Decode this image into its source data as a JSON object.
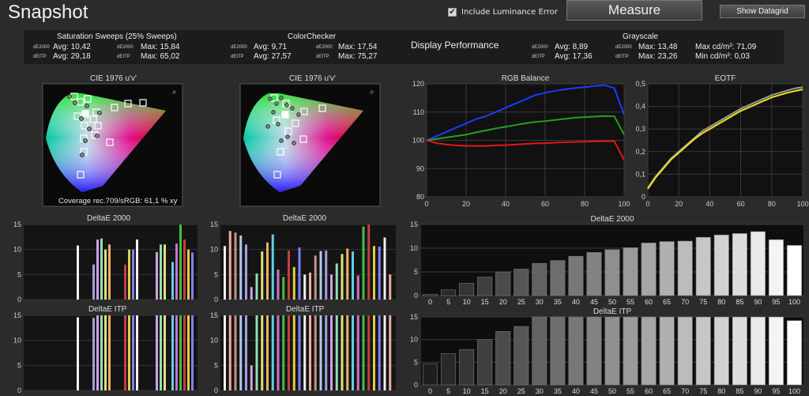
{
  "header": {
    "title": "Snapshot",
    "luminance_checkbox_label": "Include Luminance Error",
    "luminance_checked": true,
    "measure_label": "Measure",
    "datagrid_label": "Show Datagrid"
  },
  "stats": {
    "display_performance": "Display Performance",
    "saturation": {
      "title": "Saturation Sweeps (25% Sweeps)",
      "de_label": "dE2000",
      "itp_label": "dEITP",
      "de_avg": "Avg: 10,42",
      "itp_avg": "Avg: 29,18",
      "de_max": "Max: 15,84",
      "itp_max": "Max: 65,02"
    },
    "colorchecker": {
      "title": "ColorChecker",
      "de_label": "dE2000",
      "itp_label": "dEITP",
      "de_avg": "Avg: 9,71",
      "itp_avg": "Avg: 27,57",
      "de_max": "Max: 17,54",
      "itp_max": "Max: 75,27"
    },
    "grayscale": {
      "title": "Grayscale",
      "de_label": "dE2000",
      "itp_label": "dEITP",
      "de_avg": "Avg: 8,89",
      "itp_avg": "Avg: 17,36",
      "de_max": "Max: 13,48",
      "itp_max": "Max: 23,26",
      "max_lum": "Max cd/m²:  71,09",
      "min_lum": "Min cd/m²:  0,03"
    }
  },
  "cie": {
    "left_title": "CIE 1976 u'v'",
    "right_title": "CIE 1976 u'v'",
    "coverage": "Coverage rec.709/sRGB:  61,1 % xy",
    "zoom_icon": "magnifier-icon"
  },
  "small_charts": {
    "de_title": "DeltaE 2000",
    "itp_title": "DeltaE ITP",
    "yticks": [
      "15",
      "10",
      "5",
      "0"
    ]
  },
  "chart_data": [
    {
      "type": "line",
      "title": "RGB Balance",
      "x": [
        0,
        5,
        10,
        15,
        20,
        25,
        30,
        35,
        40,
        45,
        50,
        55,
        60,
        65,
        70,
        75,
        80,
        85,
        90,
        95,
        100
      ],
      "ylim": [
        80,
        120
      ],
      "xlim": [
        0,
        100
      ],
      "yticks": [
        80,
        90,
        100,
        110,
        120
      ],
      "xticks": [
        0,
        20,
        40,
        60,
        80,
        100
      ],
      "series": [
        {
          "color": "#1a3cff",
          "values": [
            100,
            101.5,
            103,
            104.5,
            106,
            107.5,
            108.5,
            110,
            111.5,
            113,
            114.5,
            116,
            116.8,
            117.5,
            118,
            118.5,
            118.8,
            119.2,
            119.5,
            118.5,
            109
          ]
        },
        {
          "color": "#22a022",
          "values": [
            100,
            100.5,
            101,
            101.5,
            102,
            102.8,
            103.5,
            104.2,
            104.8,
            105.4,
            106,
            106.5,
            106.8,
            107.2,
            107.6,
            108,
            108.2,
            108.4,
            108.6,
            108.5,
            102
          ]
        },
        {
          "color": "#e01818",
          "values": [
            100,
            99,
            98.5,
            98.2,
            98,
            98,
            98,
            98.2,
            98.3,
            98.5,
            98.7,
            98.9,
            99,
            99.2,
            99.3,
            99.4,
            99.5,
            99.6,
            99.7,
            99.7,
            93
          ]
        }
      ]
    },
    {
      "type": "line",
      "title": "EOTF",
      "x": [
        0,
        5,
        10,
        15,
        20,
        25,
        30,
        35,
        40,
        45,
        50,
        55,
        60,
        65,
        70,
        75,
        80,
        85,
        90,
        95,
        100
      ],
      "ylim": [
        0,
        0.5
      ],
      "xlim": [
        0,
        100
      ],
      "yticks": [
        "0",
        "0,1",
        "0,2",
        "0,3",
        "0,4",
        "0,5"
      ],
      "xticks": [
        0,
        20,
        40,
        60,
        80,
        100
      ],
      "series": [
        {
          "color": "#9a9a9a",
          "values": [
            0.04,
            0.09,
            0.13,
            0.17,
            0.2,
            0.23,
            0.26,
            0.29,
            0.31,
            0.33,
            0.35,
            0.37,
            0.39,
            0.405,
            0.42,
            0.435,
            0.45,
            0.46,
            0.47,
            0.48,
            0.485
          ]
        },
        {
          "color": "#f0e020",
          "values": [
            0.035,
            0.085,
            0.125,
            0.165,
            0.195,
            0.225,
            0.255,
            0.28,
            0.3,
            0.32,
            0.34,
            0.36,
            0.38,
            0.395,
            0.41,
            0.425,
            0.44,
            0.45,
            0.46,
            0.468,
            0.475
          ]
        }
      ]
    },
    {
      "type": "bar",
      "title": "DeltaE 2000",
      "categories": [
        "0",
        "5",
        "10",
        "15",
        "20",
        "25",
        "30",
        "35",
        "40",
        "45",
        "50",
        "55",
        "60",
        "65",
        "70",
        "75",
        "80",
        "85",
        "90",
        "95",
        "100"
      ],
      "values": [
        0.3,
        1.2,
        2.6,
        3.9,
        5,
        5.6,
        6.8,
        7.4,
        8.3,
        9.1,
        9.7,
        10.1,
        11.1,
        11.4,
        11.5,
        12.3,
        12.8,
        13.1,
        13.5,
        11.8,
        10.6
      ],
      "ylim": [
        0,
        15
      ],
      "yticks": [
        0,
        5,
        10,
        15
      ]
    },
    {
      "type": "bar",
      "title": "DeltaE ITP",
      "categories": [
        "0",
        "5",
        "10",
        "15",
        "20",
        "25",
        "30",
        "35",
        "40",
        "45",
        "50",
        "55",
        "60",
        "65",
        "70",
        "75",
        "80",
        "85",
        "90",
        "95",
        "100"
      ],
      "values": [
        4.6,
        6.9,
        7.8,
        10,
        11.8,
        12.9,
        15,
        15,
        15,
        15,
        15,
        15,
        15,
        15,
        15,
        15,
        15,
        15,
        15,
        15,
        14.2
      ],
      "ylim": [
        0,
        15
      ],
      "yticks": [
        0,
        5,
        10,
        15
      ]
    }
  ]
}
